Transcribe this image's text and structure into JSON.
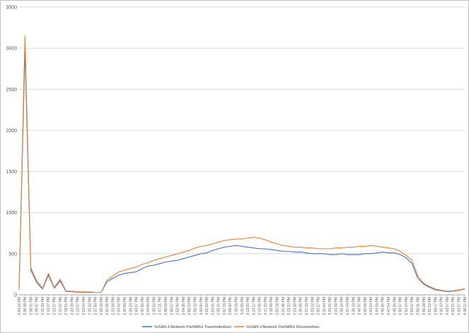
{
  "chart_data": {
    "type": "line",
    "title": "",
    "xlabel": "",
    "ylabel": "",
    "ylim": [
      0,
      3500
    ],
    "yticks": [
      0,
      500,
      1000,
      1500,
      2000,
      2500,
      3000,
      3500
    ],
    "grid": true,
    "legend_position": "bottom",
    "x": [
      "2:04:16 PM",
      "2:06:08 PM",
      "2:08:01 PM",
      "2:09:57 PM",
      "2:11:39 PM",
      "2:13:07 PM",
      "2:15:37 PM",
      "2:17:07 PM",
      "2:18:51 PM",
      "2:20:39 PM",
      "2:22:07 PM",
      "2:23:54 PM",
      "2:25:42 PM",
      "2:27:50 PM",
      "2:29:39 PM",
      "2:31:06 PM",
      "2:32:56 PM",
      "2:34:42 PM",
      "2:36:50 PM",
      "2:38:39 PM",
      "2:40:07 PM",
      "2:41:55 PM",
      "2:43:44 PM",
      "2:45:52 PM",
      "2:47:21 PM",
      "2:49:09 PM",
      "2:50:57 PM",
      "2:52:46 PM",
      "2:54:35 PM",
      "2:56:23 PM",
      "2:58:12 PM",
      "3:00:00 PM",
      "3:01:52 PM",
      "3:03:41 PM",
      "3:05:31 PM",
      "3:07:19 PM",
      "3:08:50 PM",
      "3:10:06 PM",
      "3:11:55 PM",
      "3:13:00 PM",
      "3:14:27 PM",
      "3:15:55 PM",
      "3:17:23 PM",
      "3:18:49 PM",
      "3:20:18 PM",
      "3:21:46 PM",
      "3:23:12 PM",
      "3:24:38 PM",
      "3:26:05 PM",
      "3:27:33 PM",
      "3:29:02 PM",
      "3:30:27 PM",
      "3:31:54 PM",
      "3:33:21 PM",
      "3:34:49 PM",
      "3:36:16 PM",
      "3:37:44 PM",
      "3:39:10 PM",
      "3:40:37 PM",
      "3:42:06 PM",
      "3:43:33 PM",
      "3:44:59 PM",
      "3:46:26 PM",
      "3:47:54 PM",
      "3:49:20 PM",
      "3:50:47 PM",
      "3:52:14 PM",
      "3:53:37 PM",
      "3:55:01 PM",
      "3:56:28 PM",
      "3:57:52 PM",
      "3:59:17 PM",
      "4:00:42 PM",
      "4:02:07 PM",
      "4:03:31 PM",
      "4:04:57 PM",
      "4:06:21 PM"
    ],
    "series": [
      {
        "name": "\\\\vSAN-1\\Network Port\\MB/s Transmitted/sec",
        "color": "#4472c4",
        "values": [
          80,
          2980,
          300,
          150,
          70,
          240,
          80,
          170,
          40,
          40,
          30,
          30,
          30,
          30,
          30,
          160,
          200,
          240,
          260,
          270,
          280,
          320,
          350,
          360,
          380,
          400,
          410,
          420,
          440,
          460,
          480,
          500,
          510,
          540,
          560,
          580,
          590,
          600,
          590,
          580,
          570,
          560,
          560,
          550,
          540,
          530,
          530,
          520,
          520,
          510,
          500,
          500,
          500,
          490,
          490,
          500,
          490,
          490,
          490,
          500,
          500,
          510,
          520,
          510,
          510,
          490,
          450,
          380,
          200,
          130,
          90,
          60,
          50,
          40,
          45,
          55,
          70
        ]
      },
      {
        "name": "\\\\vSAN-1\\Network Port\\MB/s Received/sec",
        "color": "#ed7d31",
        "values": [
          60,
          3150,
          330,
          170,
          80,
          260,
          90,
          190,
          45,
          45,
          35,
          35,
          35,
          30,
          30,
          180,
          230,
          280,
          300,
          320,
          340,
          370,
          390,
          420,
          440,
          460,
          480,
          500,
          520,
          540,
          570,
          590,
          600,
          620,
          640,
          660,
          670,
          680,
          680,
          690,
          700,
          690,
          670,
          640,
          620,
          600,
          590,
          580,
          580,
          570,
          570,
          560,
          560,
          560,
          570,
          570,
          580,
          580,
          590,
          590,
          600,
          590,
          580,
          570,
          560,
          530,
          480,
          420,
          230,
          140,
          100,
          70,
          55,
          45,
          50,
          60,
          75
        ]
      }
    ]
  }
}
